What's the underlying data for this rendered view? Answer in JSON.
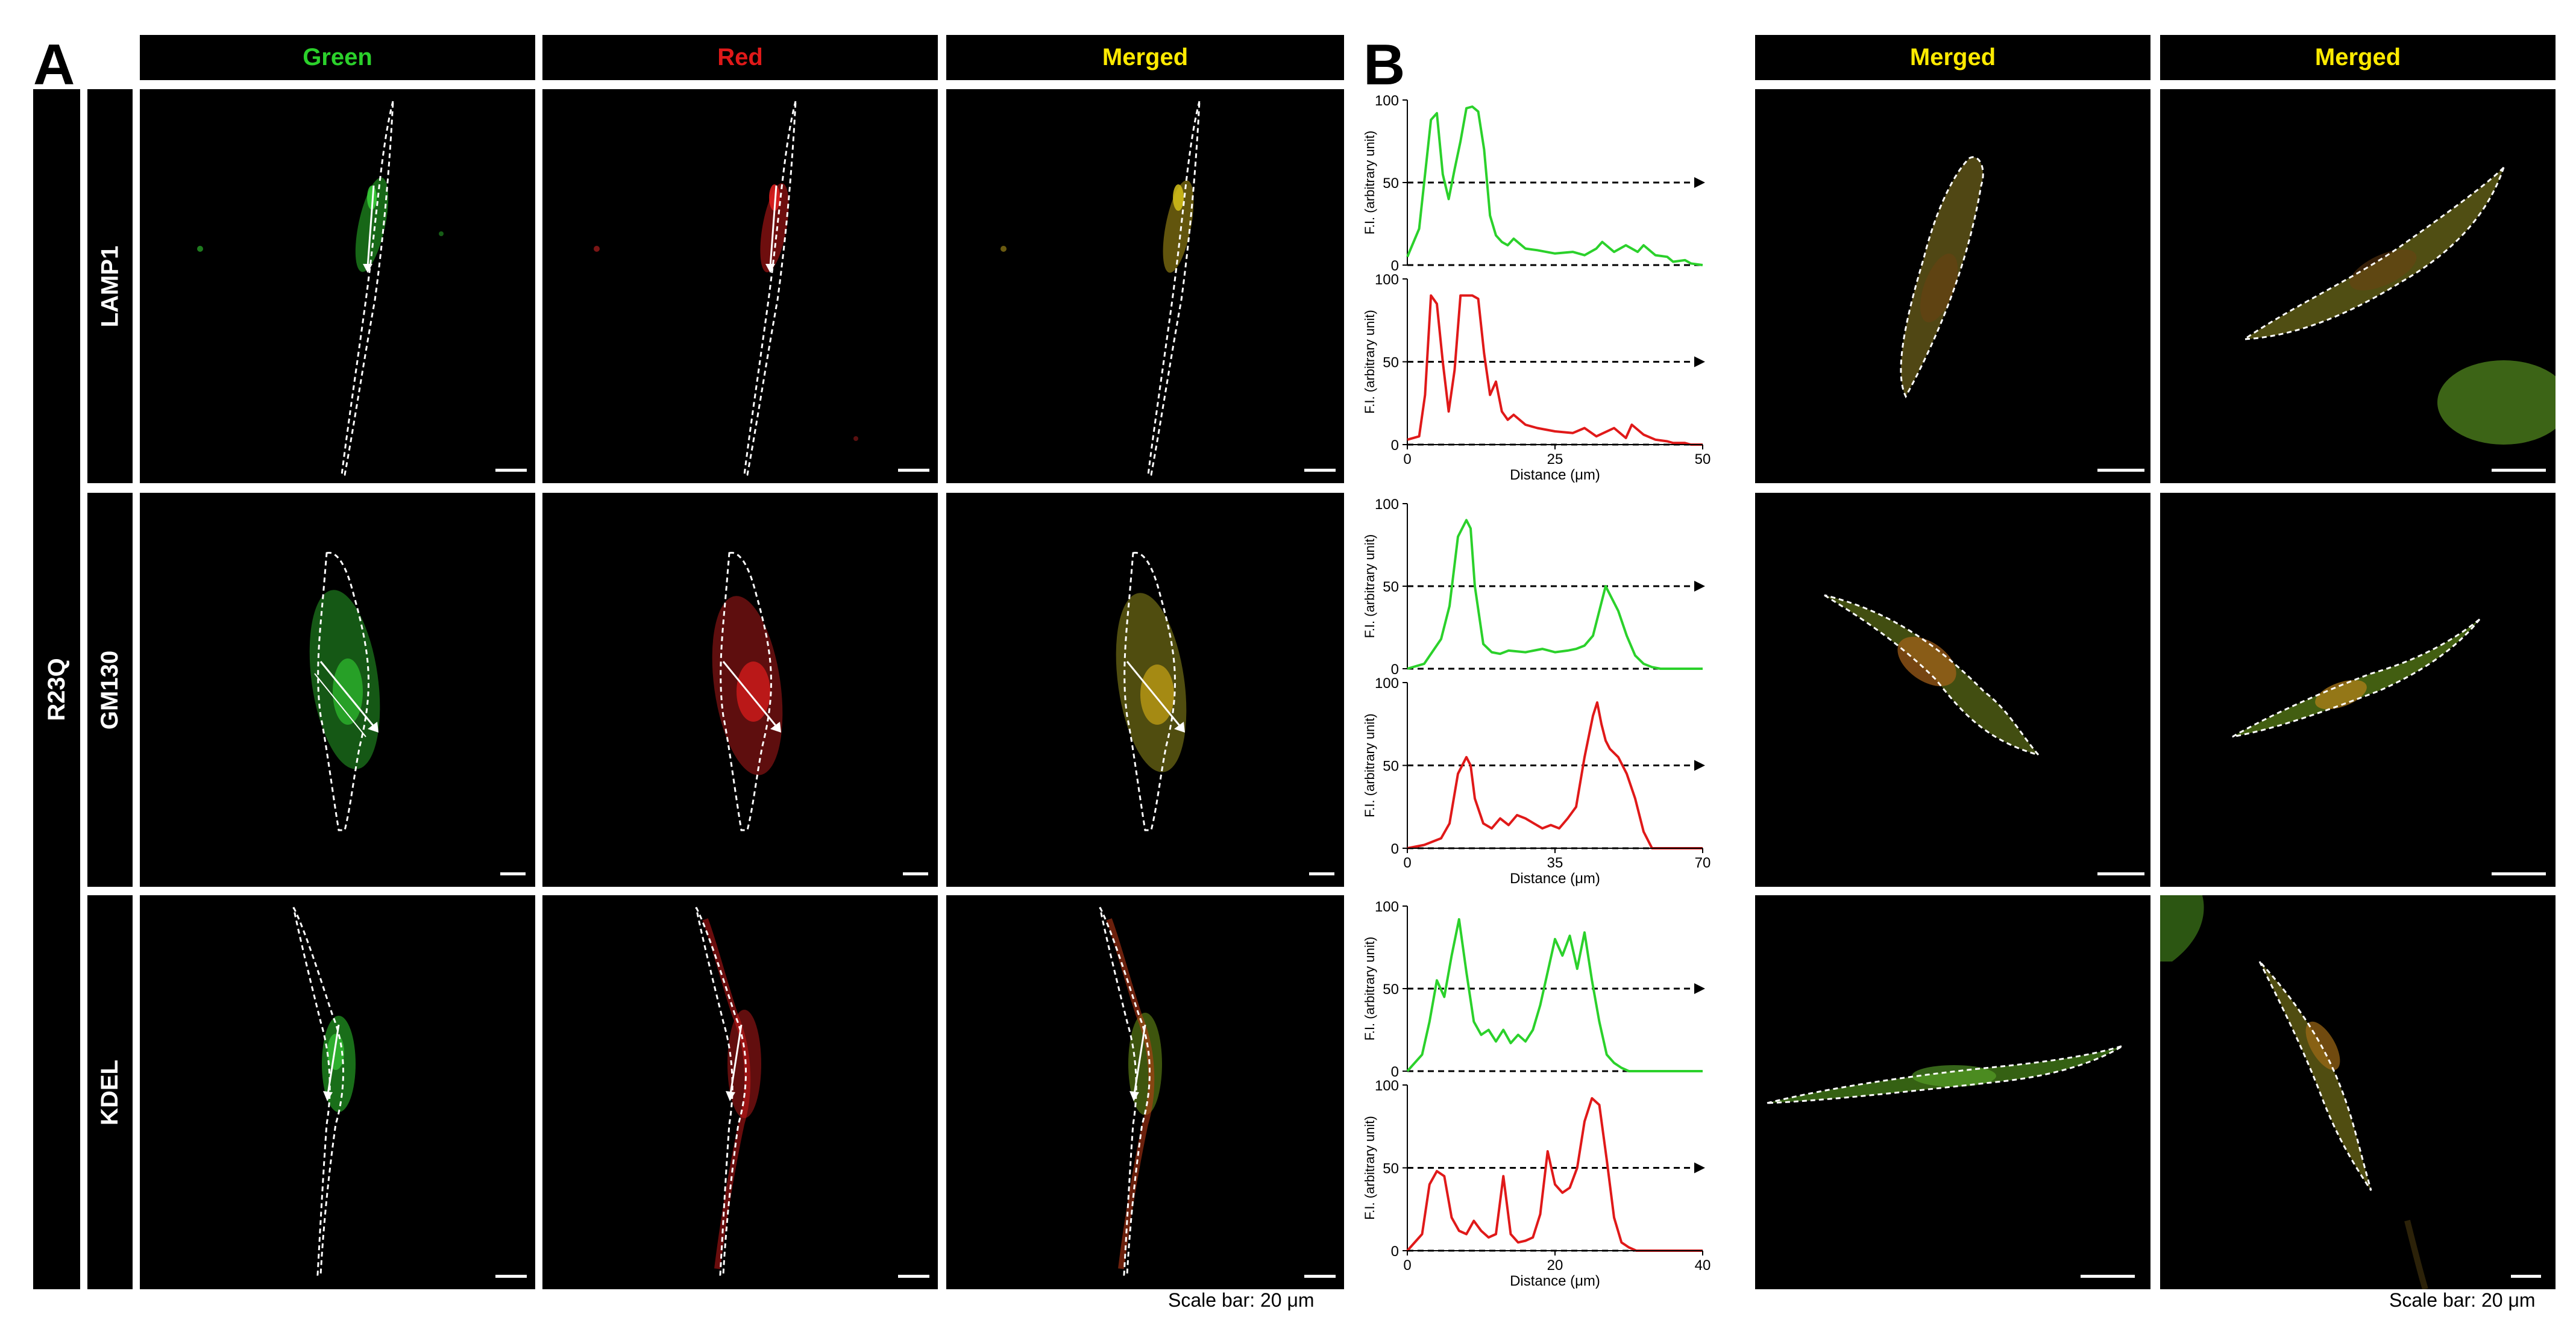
{
  "panels": {
    "a": "A",
    "b": "B"
  },
  "group_label": "R23Q",
  "column_headers_a": [
    {
      "label": "Green",
      "color": "#2bd12b"
    },
    {
      "label": "Red",
      "color": "#e01919"
    },
    {
      "label": "Merged",
      "color": "#ffea00"
    }
  ],
  "column_headers_b": [
    {
      "label": "Merged",
      "color": "#ffea00"
    },
    {
      "label": "Merged",
      "color": "#ffea00"
    }
  ],
  "rows": [
    "LAMP1",
    "GM130",
    "KDEL"
  ],
  "scale_caption_a": "Scale bar: 20 μm",
  "scale_caption_b": "Scale bar: 20 μm",
  "colors": {
    "green": "#2bd12b",
    "red": "#e01919",
    "merged": "#ffea00"
  },
  "chart_data": [
    {
      "type": "line",
      "row": "LAMP1",
      "ylabel": "F.I. (arbitrary unit)",
      "xlabel": "Distance (μm)",
      "xlim": [
        0,
        50
      ],
      "ylim": [
        0,
        100
      ],
      "xticks": [
        "0",
        "25",
        "50"
      ],
      "yticks": [
        "0",
        "50",
        "100"
      ],
      "series": [
        {
          "name": "Green",
          "color": "#2bd12b",
          "x": [
            0,
            2,
            4,
            5,
            6,
            7,
            8,
            9,
            10,
            11,
            12,
            13,
            14,
            15,
            16,
            17,
            18,
            20,
            22,
            25,
            28,
            30,
            32,
            33,
            35,
            37,
            39,
            40,
            42,
            44,
            45,
            47,
            48,
            50
          ],
          "y": [
            5,
            22,
            88,
            92,
            55,
            40,
            58,
            75,
            95,
            96,
            93,
            70,
            30,
            18,
            14,
            12,
            16,
            10,
            9,
            7,
            8,
            6,
            10,
            14,
            8,
            12,
            8,
            12,
            6,
            5,
            2,
            3,
            1,
            0
          ]
        },
        {
          "name": "Red",
          "color": "#e01919",
          "x": [
            0,
            2,
            3,
            4,
            5,
            6,
            7,
            8,
            9,
            10,
            11,
            12,
            13,
            14,
            15,
            16,
            17,
            18,
            20,
            22,
            25,
            28,
            30,
            32,
            35,
            37,
            38,
            40,
            42,
            44,
            45,
            47,
            48,
            50
          ],
          "y": [
            3,
            5,
            30,
            90,
            85,
            50,
            20,
            45,
            90,
            90,
            90,
            88,
            55,
            30,
            38,
            20,
            15,
            18,
            12,
            10,
            8,
            7,
            10,
            5,
            10,
            4,
            12,
            6,
            3,
            2,
            1,
            1,
            0,
            0
          ]
        }
      ]
    },
    {
      "type": "line",
      "row": "GM130",
      "ylabel": "F.I. (arbitrary unit)",
      "xlabel": "Distance (μm)",
      "xlim": [
        0,
        70
      ],
      "ylim": [
        0,
        100
      ],
      "xticks": [
        "0",
        "35",
        "70"
      ],
      "yticks": [
        "0",
        "50",
        "100"
      ],
      "series": [
        {
          "name": "Green",
          "color": "#2bd12b",
          "x": [
            0,
            4,
            8,
            10,
            12,
            14,
            15,
            16,
            18,
            20,
            22,
            24,
            28,
            32,
            35,
            38,
            40,
            42,
            44,
            46,
            47,
            48,
            50,
            52,
            54,
            56,
            58,
            60,
            62,
            70
          ],
          "y": [
            0,
            3,
            18,
            38,
            80,
            90,
            85,
            50,
            15,
            10,
            9,
            11,
            10,
            12,
            10,
            11,
            12,
            14,
            20,
            40,
            50,
            45,
            35,
            20,
            8,
            3,
            1,
            0,
            0,
            0
          ]
        },
        {
          "name": "Red",
          "color": "#e01919",
          "x": [
            0,
            4,
            8,
            10,
            12,
            14,
            15,
            16,
            18,
            20,
            22,
            24,
            26,
            28,
            30,
            32,
            34,
            36,
            38,
            40,
            42,
            44,
            45,
            46,
            47,
            48,
            50,
            52,
            54,
            56,
            58,
            70
          ],
          "y": [
            0,
            2,
            6,
            15,
            45,
            55,
            50,
            30,
            15,
            12,
            18,
            14,
            20,
            18,
            15,
            12,
            14,
            12,
            18,
            25,
            55,
            80,
            88,
            75,
            65,
            60,
            55,
            45,
            30,
            10,
            0,
            0
          ]
        }
      ]
    },
    {
      "type": "line",
      "row": "KDEL",
      "ylabel": "F.I. (arbitrary unit)",
      "xlabel": "Distance (μm)",
      "xlim": [
        0,
        40
      ],
      "ylim": [
        0,
        100
      ],
      "xticks": [
        "0",
        "20",
        "40"
      ],
      "yticks": [
        "0",
        "50",
        "100"
      ],
      "series": [
        {
          "name": "Green",
          "color": "#2bd12b",
          "x": [
            0,
            2,
            3,
            4,
            5,
            6,
            7,
            8,
            9,
            10,
            11,
            12,
            13,
            14,
            15,
            16,
            17,
            18,
            19,
            20,
            21,
            22,
            23,
            24,
            25,
            26,
            27,
            28,
            29,
            30,
            31,
            33,
            40
          ],
          "y": [
            0,
            10,
            30,
            55,
            45,
            70,
            92,
            60,
            30,
            22,
            25,
            18,
            25,
            17,
            22,
            18,
            25,
            40,
            60,
            80,
            70,
            82,
            62,
            84,
            55,
            30,
            10,
            5,
            2,
            0,
            0,
            0,
            0
          ]
        },
        {
          "name": "Red",
          "color": "#e01919",
          "x": [
            0,
            2,
            3,
            4,
            5,
            6,
            7,
            8,
            9,
            10,
            11,
            12,
            13,
            14,
            15,
            16,
            17,
            18,
            19,
            20,
            21,
            22,
            23,
            24,
            25,
            26,
            27,
            28,
            29,
            30,
            31,
            33,
            40
          ],
          "y": [
            0,
            10,
            40,
            48,
            45,
            20,
            12,
            10,
            18,
            12,
            8,
            10,
            45,
            10,
            5,
            6,
            8,
            22,
            60,
            40,
            35,
            38,
            50,
            78,
            92,
            88,
            55,
            20,
            5,
            2,
            0,
            0,
            0
          ]
        }
      ]
    }
  ]
}
